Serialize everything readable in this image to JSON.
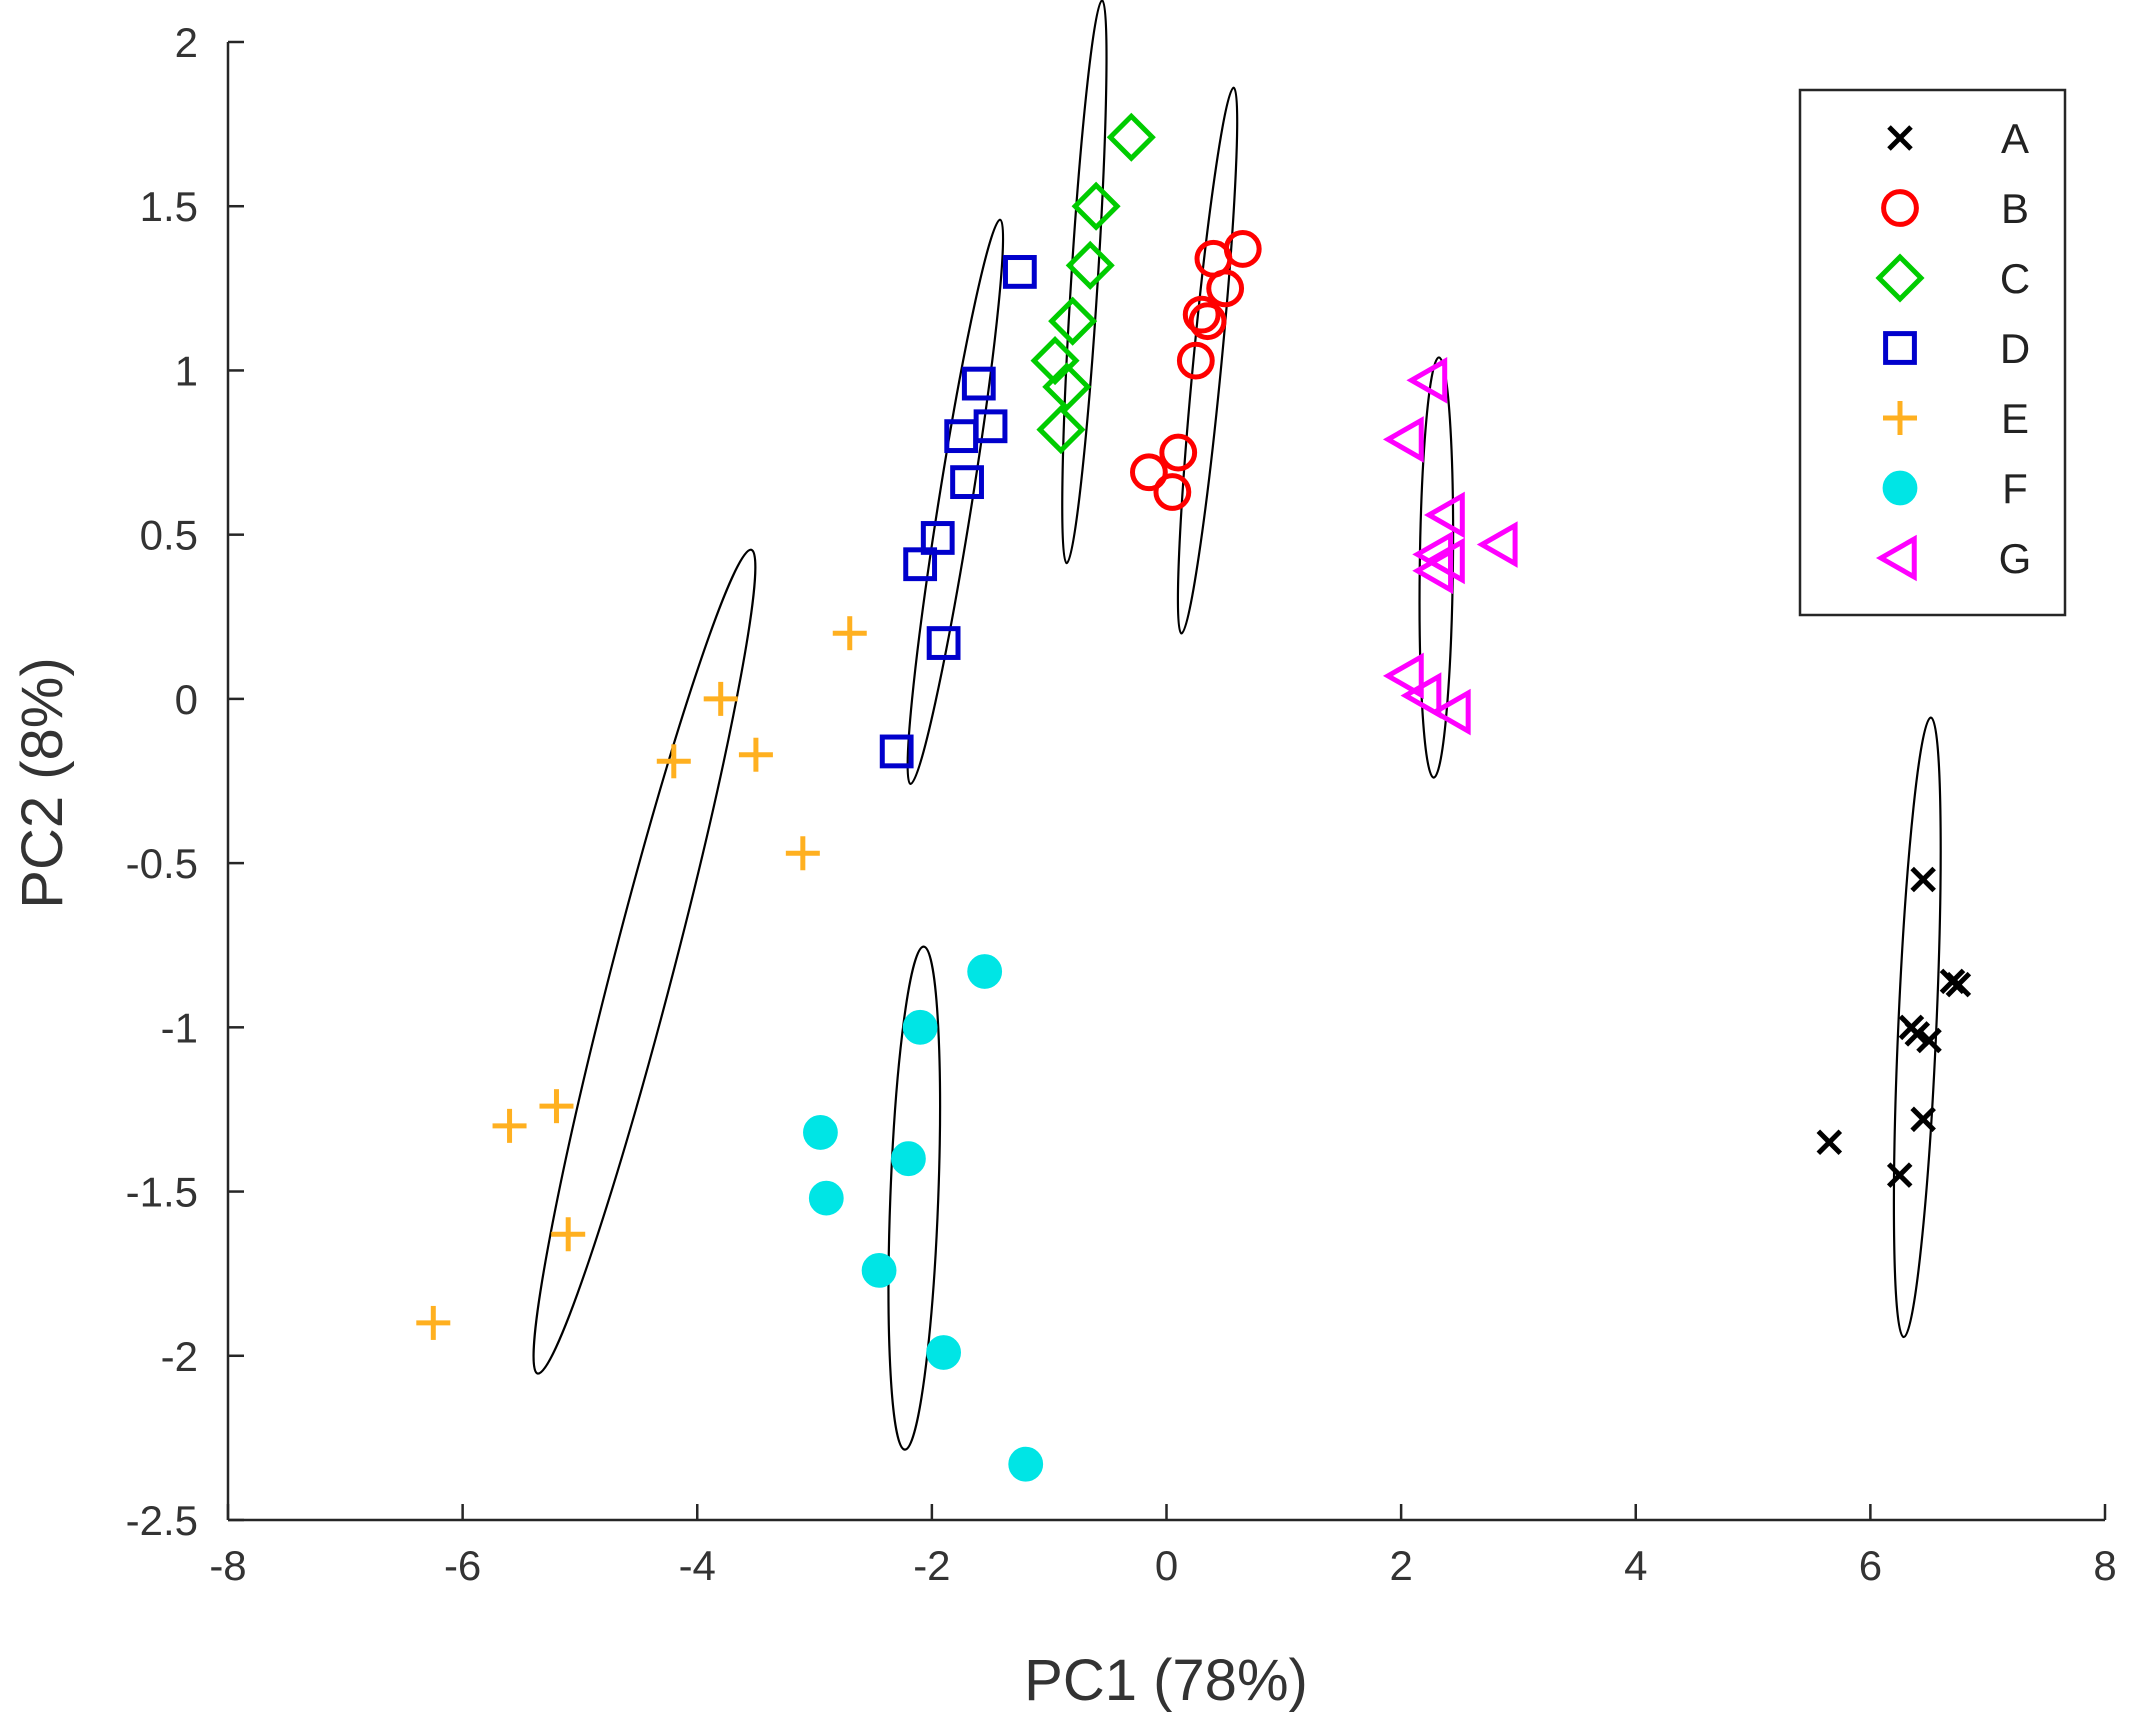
{
  "chart_data": {
    "type": "scatter",
    "title": "",
    "xlabel": "PC1 (78%)",
    "ylabel": "PC2 (8%)",
    "xlim": [
      -8,
      8
    ],
    "ylim": [
      -2.5,
      2
    ],
    "xticks": [
      "-8",
      "-6",
      "-4",
      "-2",
      "0",
      "2",
      "4",
      "6",
      "8"
    ],
    "yticks": [
      "2",
      "1.5",
      "1",
      "0.5",
      "0",
      "-0.5",
      "-1",
      "-1.5",
      "-2",
      "-2.5"
    ],
    "legend_position": "top-right",
    "series": [
      {
        "name": "A",
        "marker": "x",
        "color": "#000000",
        "points": [
          [
            6.45,
            -0.55
          ],
          [
            6.7,
            -0.86
          ],
          [
            6.75,
            -0.87
          ],
          [
            6.35,
            -1.0
          ],
          [
            6.4,
            -1.02
          ],
          [
            6.5,
            -1.04
          ],
          [
            6.45,
            -1.28
          ],
          [
            5.65,
            -1.35
          ],
          [
            6.25,
            -1.45
          ]
        ],
        "ellipse": {
          "cx": 6.4,
          "cy": -1.0,
          "rx": 0.95,
          "ry": 0.11,
          "angle_deg": 83
        }
      },
      {
        "name": "B",
        "marker": "circle",
        "color": "#ff0000",
        "points": [
          [
            0.65,
            1.37
          ],
          [
            0.4,
            1.34
          ],
          [
            0.5,
            1.25
          ],
          [
            0.3,
            1.17
          ],
          [
            0.35,
            1.15
          ],
          [
            0.25,
            1.03
          ],
          [
            0.1,
            0.75
          ],
          [
            -0.15,
            0.69
          ],
          [
            0.05,
            0.63
          ]
        ],
        "ellipse": {
          "cx": 0.35,
          "cy": 1.03,
          "rx": 0.86,
          "ry": 0.05,
          "angle_deg": 75
        }
      },
      {
        "name": "C",
        "marker": "diamond",
        "color": "#00cc00",
        "points": [
          [
            -0.3,
            1.71
          ],
          [
            -0.6,
            1.5
          ],
          [
            -0.65,
            1.32
          ],
          [
            -0.8,
            1.15
          ],
          [
            -0.95,
            1.03
          ],
          [
            -0.85,
            0.95
          ],
          [
            -0.9,
            0.82
          ]
        ],
        "ellipse": {
          "cx": -0.7,
          "cy": 1.27,
          "rx": 0.87,
          "ry": 0.04,
          "angle_deg": 80
        }
      },
      {
        "name": "D",
        "marker": "square",
        "color": "#0000cc",
        "points": [
          [
            -1.25,
            1.3
          ],
          [
            -1.6,
            0.96
          ],
          [
            -1.5,
            0.83
          ],
          [
            -1.75,
            0.8
          ],
          [
            -1.7,
            0.66
          ],
          [
            -1.95,
            0.49
          ],
          [
            -2.1,
            0.41
          ],
          [
            -1.9,
            0.17
          ],
          [
            -2.3,
            -0.16
          ]
        ],
        "ellipse": {
          "cx": -1.8,
          "cy": 0.6,
          "rx": 0.94,
          "ry": 0.08,
          "angle_deg": 66
        }
      },
      {
        "name": "E",
        "marker": "plus",
        "color": "#ffb020",
        "points": [
          [
            -2.7,
            0.2
          ],
          [
            -3.8,
            0.0
          ],
          [
            -3.5,
            -0.17
          ],
          [
            -4.2,
            -0.19
          ],
          [
            -3.1,
            -0.47
          ],
          [
            -5.2,
            -1.24
          ],
          [
            -5.6,
            -1.3
          ],
          [
            -5.1,
            -1.63
          ],
          [
            -6.25,
            -1.9
          ]
        ],
        "ellipse": {
          "cx": -4.45,
          "cy": -0.8,
          "rx": 1.55,
          "ry": 0.25,
          "angle_deg": 54
        }
      },
      {
        "name": "F",
        "marker": "filled-circle",
        "color": "#00e5e5",
        "points": [
          [
            -1.55,
            -0.83
          ],
          [
            -2.1,
            -1.0
          ],
          [
            -2.95,
            -1.32
          ],
          [
            -2.2,
            -1.4
          ],
          [
            -2.9,
            -1.52
          ],
          [
            -2.45,
            -1.74
          ],
          [
            -1.9,
            -1.99
          ],
          [
            -1.2,
            -2.33
          ]
        ],
        "ellipse": {
          "cx": -2.15,
          "cy": -1.52,
          "rx": 0.77,
          "ry": 0.17,
          "angle_deg": 84
        }
      },
      {
        "name": "G",
        "marker": "triangle-left",
        "color": "#ff00ff",
        "points": [
          [
            2.25,
            0.97
          ],
          [
            2.05,
            0.79
          ],
          [
            2.4,
            0.56
          ],
          [
            2.85,
            0.47
          ],
          [
            2.3,
            0.44
          ],
          [
            2.4,
            0.42
          ],
          [
            2.3,
            0.39
          ],
          [
            2.05,
            0.07
          ],
          [
            2.2,
            0.01
          ],
          [
            2.45,
            -0.04
          ]
        ],
        "ellipse": {
          "cx": 2.3,
          "cy": 0.4,
          "rx": 0.64,
          "ry": 0.08,
          "angle_deg": 88
        }
      }
    ]
  }
}
